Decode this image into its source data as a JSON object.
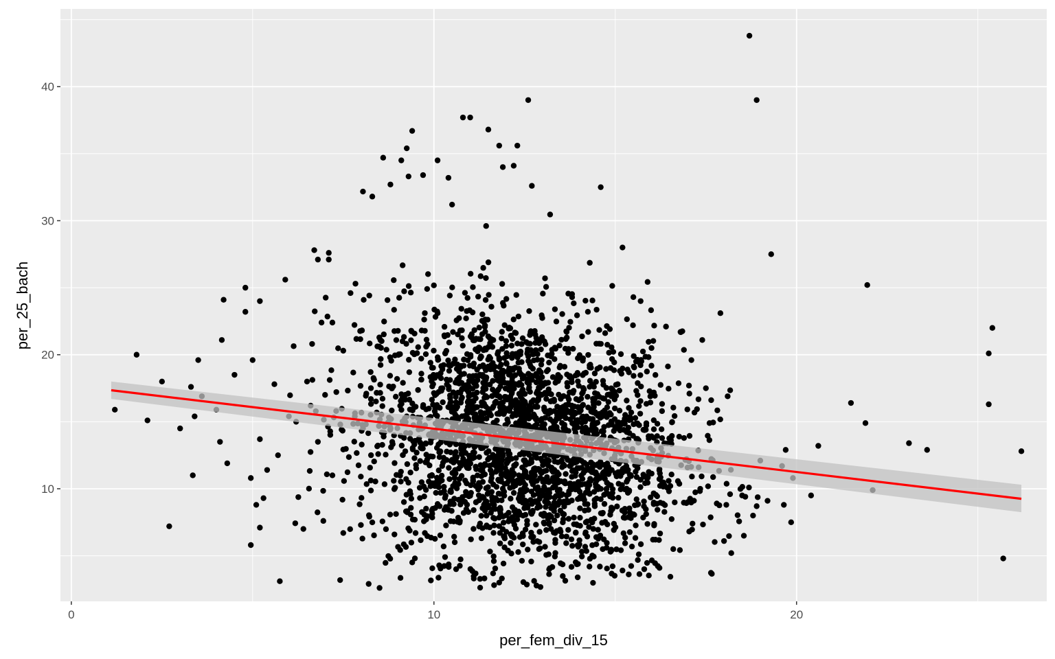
{
  "chart_data": {
    "type": "scatter",
    "title": "",
    "xlabel": "per_fem_div_15",
    "ylabel": "per_25_bach",
    "xlim": [
      -0.3,
      26.9
    ],
    "ylim": [
      1.6,
      45.8
    ],
    "xticks": [
      0,
      10,
      20
    ],
    "yticks": [
      10,
      20,
      30,
      40
    ],
    "grid": true,
    "panel_color": "#ebebeb",
    "grid_color": "#ffffff",
    "point_color": "#000000",
    "fit_color": "#ff0000",
    "band_color": "#c2c2c2",
    "fit_line": {
      "x": [
        1.1,
        26.2
      ],
      "y": [
        17.35,
        9.25
      ],
      "se_lower": [
        16.7,
        8.25
      ],
      "se_upper": [
        18.0,
        10.3
      ]
    },
    "cluster": {
      "note": "dense cloud of points, approximately normally distributed",
      "n": 2700,
      "x_mean": 12.4,
      "x_sd": 2.2,
      "y_mean": 13.6,
      "y_sd": 5.2,
      "x_range": [
        6.0,
        19.0
      ],
      "y_range": [
        2.5,
        37.0
      ]
    },
    "points": [
      [
        1.2,
        15.9
      ],
      [
        1.8,
        20.0
      ],
      [
        2.1,
        15.1
      ],
      [
        2.5,
        18.0
      ],
      [
        2.7,
        7.2
      ],
      [
        3.0,
        14.5
      ],
      [
        3.3,
        17.6
      ],
      [
        3.35,
        11.0
      ],
      [
        3.4,
        15.4
      ],
      [
        3.5,
        19.6
      ],
      [
        3.6,
        16.9
      ],
      [
        4.0,
        15.9
      ],
      [
        4.15,
        21.1
      ],
      [
        4.2,
        24.1
      ],
      [
        4.3,
        11.9
      ],
      [
        4.1,
        13.5
      ],
      [
        4.5,
        18.5
      ],
      [
        4.8,
        25.0
      ],
      [
        4.8,
        23.2
      ],
      [
        4.95,
        10.8
      ],
      [
        4.95,
        5.8
      ],
      [
        5.0,
        19.6
      ],
      [
        5.1,
        8.8
      ],
      [
        5.2,
        24.0
      ],
      [
        5.2,
        13.7
      ],
      [
        5.2,
        7.1
      ],
      [
        5.3,
        9.3
      ],
      [
        5.4,
        11.4
      ],
      [
        5.6,
        17.8
      ],
      [
        5.7,
        12.5
      ],
      [
        5.75,
        3.1
      ],
      [
        5.9,
        25.6
      ],
      [
        6.0,
        15.4
      ],
      [
        6.2,
        15.0
      ],
      [
        6.4,
        7.0
      ],
      [
        6.6,
        16.2
      ],
      [
        6.7,
        27.8
      ],
      [
        6.8,
        27.1
      ],
      [
        6.9,
        22.4
      ],
      [
        6.95,
        7.6
      ],
      [
        7.1,
        27.6
      ],
      [
        7.1,
        27.1
      ],
      [
        7.2,
        22.4
      ],
      [
        6.5,
        18.0
      ],
      [
        7.5,
        20.3
      ],
      [
        7.7,
        24.6
      ],
      [
        8.3,
        31.8
      ],
      [
        8.6,
        34.7
      ],
      [
        8.8,
        32.7
      ],
      [
        9.1,
        34.5
      ],
      [
        9.25,
        35.4
      ],
      [
        9.3,
        33.3
      ],
      [
        9.4,
        36.7
      ],
      [
        9.7,
        33.4
      ],
      [
        10.1,
        34.5
      ],
      [
        10.4,
        33.2
      ],
      [
        10.5,
        31.2
      ],
      [
        10.8,
        37.7
      ],
      [
        11.0,
        37.7
      ],
      [
        11.5,
        36.8
      ],
      [
        11.8,
        35.6
      ],
      [
        11.9,
        34.0
      ],
      [
        12.2,
        34.1
      ],
      [
        12.3,
        35.6
      ],
      [
        12.6,
        39.0
      ],
      [
        12.7,
        32.6
      ],
      [
        14.6,
        32.5
      ],
      [
        15.2,
        28.0
      ],
      [
        15.5,
        24.3
      ],
      [
        15.7,
        24.0
      ],
      [
        16.0,
        20.5
      ],
      [
        16.4,
        22.1
      ],
      [
        16.8,
        21.7
      ],
      [
        17.1,
        19.6
      ],
      [
        17.4,
        21.1
      ],
      [
        17.5,
        17.5
      ],
      [
        17.9,
        23.1
      ],
      [
        18.1,
        16.9
      ],
      [
        18.7,
        43.8
      ],
      [
        18.9,
        39.0
      ],
      [
        19.3,
        27.5
      ],
      [
        18.5,
        9.5
      ],
      [
        18.9,
        8.7
      ],
      [
        18.8,
        8.0
      ],
      [
        19.0,
        12.1
      ],
      [
        19.2,
        9.1
      ],
      [
        19.6,
        11.7
      ],
      [
        19.65,
        8.8
      ],
      [
        19.7,
        12.9
      ],
      [
        19.85,
        7.5
      ],
      [
        19.9,
        10.8
      ],
      [
        20.4,
        9.5
      ],
      [
        20.6,
        13.2
      ],
      [
        21.5,
        16.4
      ],
      [
        21.9,
        14.9
      ],
      [
        21.95,
        25.2
      ],
      [
        22.1,
        9.9
      ],
      [
        23.1,
        13.4
      ],
      [
        23.6,
        12.9
      ],
      [
        25.3,
        20.1
      ],
      [
        25.3,
        16.3
      ],
      [
        25.4,
        22.0
      ],
      [
        25.7,
        4.8
      ],
      [
        26.2,
        12.8
      ],
      [
        17.6,
        14.9
      ],
      [
        17.8,
        8.9
      ],
      [
        18.0,
        6.1
      ],
      [
        18.2,
        5.2
      ],
      [
        17.3,
        11.6
      ],
      [
        17.0,
        9.0
      ],
      [
        16.6,
        5.5
      ],
      [
        15.8,
        4.0
      ],
      [
        15.2,
        3.9
      ],
      [
        8.5,
        2.6
      ],
      [
        8.2,
        2.9
      ],
      [
        11.1,
        3.3
      ],
      [
        11.8,
        3.0
      ],
      [
        7.5,
        6.7
      ],
      [
        7.2,
        11.0
      ],
      [
        6.8,
        13.5
      ]
    ]
  }
}
